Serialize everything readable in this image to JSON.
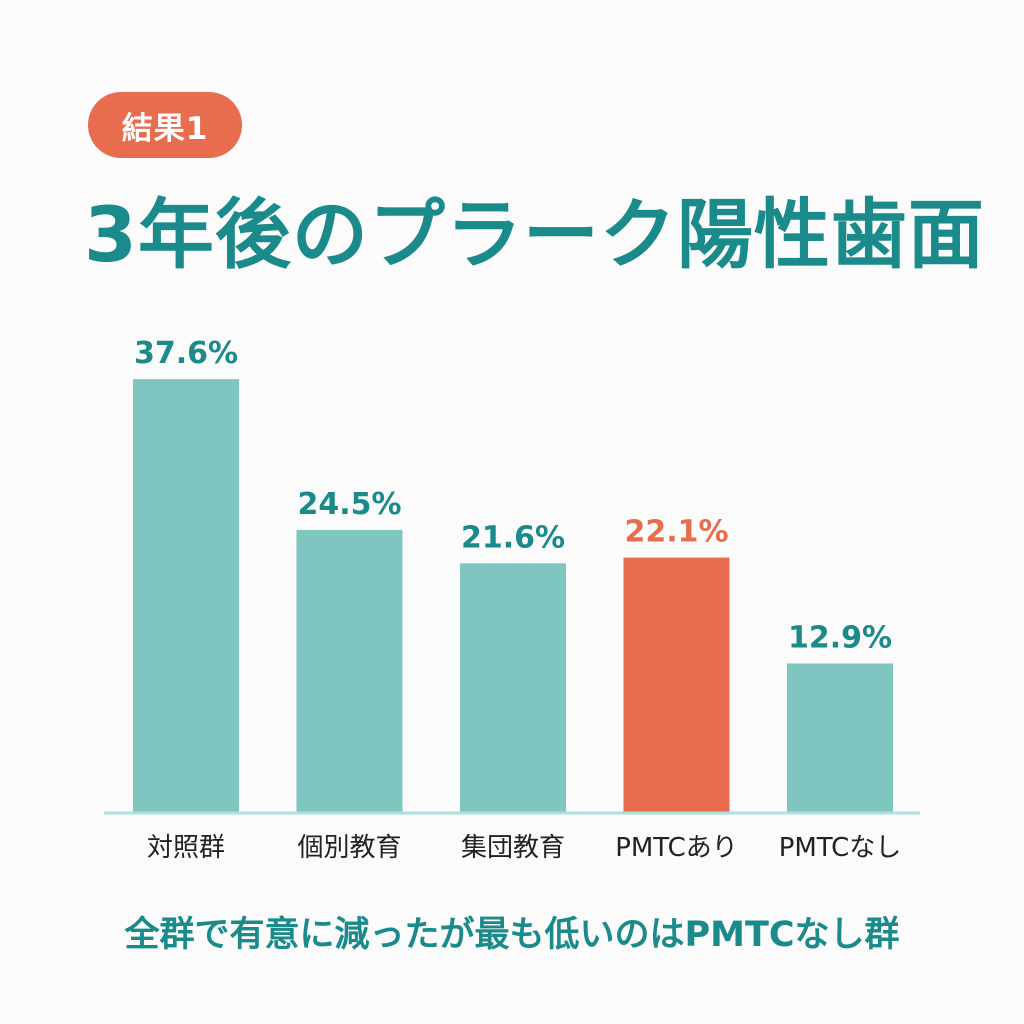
{
  "badge": {
    "text": "結果1"
  },
  "title": "3年後のプラーク陽性歯面",
  "footer": "全群で有意に減ったが最も低いのはPMTCなし群",
  "colors": {
    "teal_text": "#1a8a8a",
    "bar_teal": "#7fc5c0",
    "bar_accent": "#e86d4f",
    "badge_bg": "#e86d4f",
    "baseline": "#aee0e0",
    "category_text": "#222222"
  },
  "chart_data": {
    "type": "bar",
    "categories": [
      "対照群",
      "個別教育",
      "集団教育",
      "PMTCあり",
      "PMTCなし"
    ],
    "values": [
      37.6,
      24.5,
      21.6,
      22.1,
      12.9
    ],
    "data_labels": [
      "37.6%",
      "24.5%",
      "21.6%",
      "22.1%",
      "12.9%"
    ],
    "highlight": [
      "false",
      "false",
      "false",
      "true",
      "false"
    ],
    "unit": "%",
    "ylim": [
      0,
      41
    ],
    "grid": false,
    "legend": "none"
  }
}
